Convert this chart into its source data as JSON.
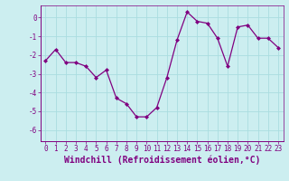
{
  "x": [
    0,
    1,
    2,
    3,
    4,
    5,
    6,
    7,
    8,
    9,
    10,
    11,
    12,
    13,
    14,
    15,
    16,
    17,
    18,
    19,
    20,
    21,
    22,
    23
  ],
  "y": [
    -2.3,
    -1.7,
    -2.4,
    -2.4,
    -2.6,
    -3.2,
    -2.8,
    -4.3,
    -4.6,
    -5.3,
    -5.3,
    -4.8,
    -3.2,
    -1.2,
    0.3,
    -0.2,
    -0.3,
    -1.1,
    -2.6,
    -0.5,
    -0.4,
    -1.1,
    -1.1,
    -1.6
  ],
  "xlim": [
    -0.5,
    23.5
  ],
  "ylim": [
    -6.6,
    0.65
  ],
  "yticks": [
    0,
    -1,
    -2,
    -3,
    -4,
    -5,
    -6
  ],
  "xticks": [
    0,
    1,
    2,
    3,
    4,
    5,
    6,
    7,
    8,
    9,
    10,
    11,
    12,
    13,
    14,
    15,
    16,
    17,
    18,
    19,
    20,
    21,
    22,
    23
  ],
  "xlabel": "Windchill (Refroidissement éolien,°C)",
  "line_color": "#800080",
  "marker": "D",
  "marker_size": 2.0,
  "bg_color": "#cceef0",
  "grid_color": "#aadde0",
  "tick_label_fontsize": 5.5,
  "xlabel_fontsize": 7.0
}
